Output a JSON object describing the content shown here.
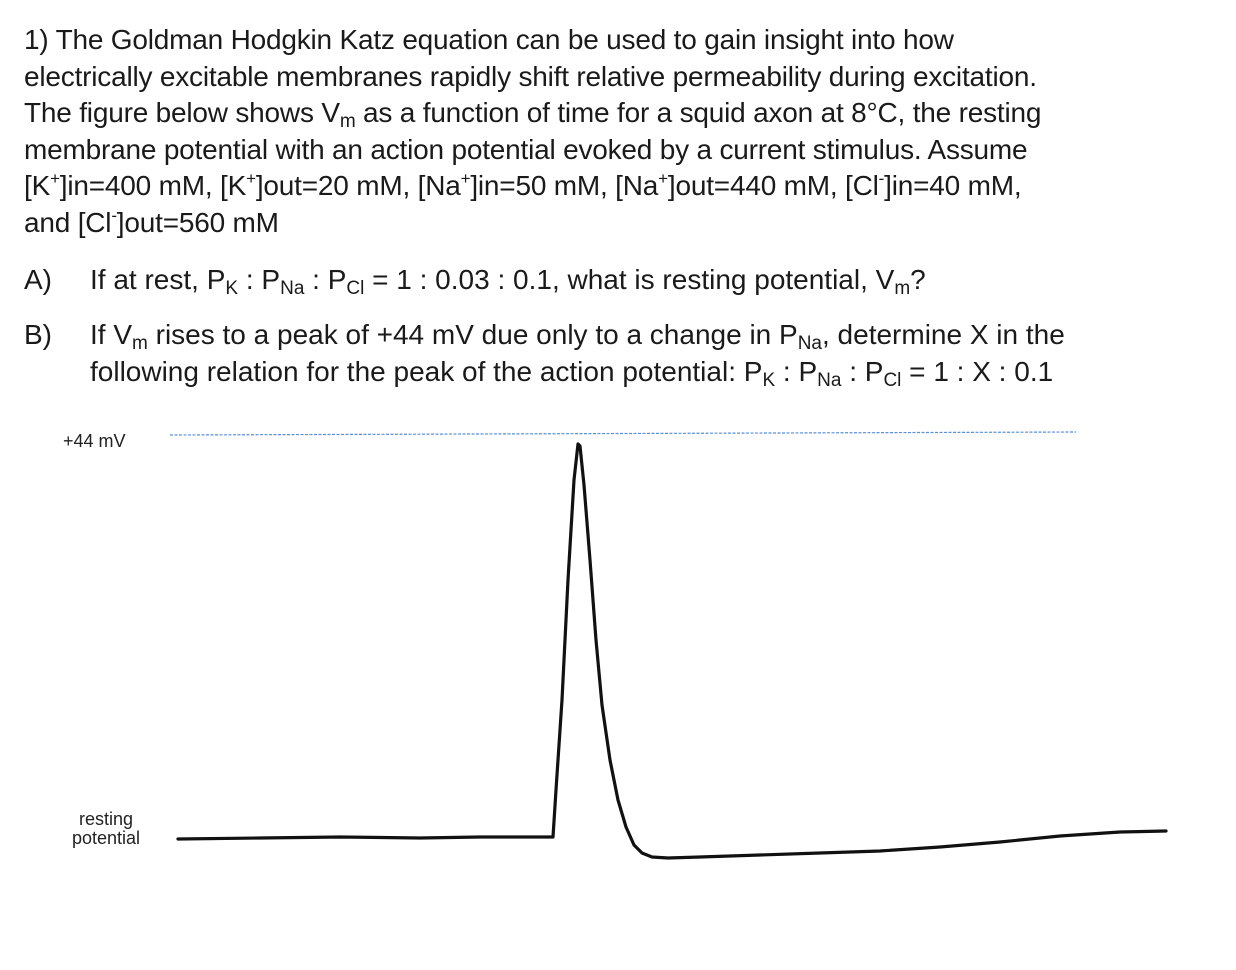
{
  "question": {
    "number": "1)",
    "intro_line1": "The Goldman Hodgkin Katz equation can be used to gain insight into how",
    "intro_line2": "electrically excitable membranes rapidly shift relative permeability during excitation.",
    "intro_line3_a": "The figure below shows V",
    "intro_line3_sub": "m",
    "intro_line3_b": " as a function of time for a squid axon at 8°C, the resting",
    "intro_line4": "membrane potential with an action potential evoked by a current stimulus. Assume",
    "conc": {
      "k_in_a": "[K",
      "k_in_sup": "+",
      "k_in_b": "]in=400 mM, [K",
      "k_out_sup": "+",
      "k_out_b": "]out=20 mM, [Na",
      "na_in_sup": "+",
      "na_in_b": "]in=50 mM, [Na",
      "na_out_sup": "+",
      "na_out_b": "]out=440 mM, [Cl",
      "cl_in_sup": "-",
      "cl_in_b": "]in=40 mM,",
      "line6_a": "and [Cl",
      "cl_out_sup": "-",
      "line6_b": "]out=560 mM"
    }
  },
  "part_a": {
    "letter": "A)",
    "t1": "If at rest, P",
    "s1": "K",
    "t2": " : P",
    "s2": "Na",
    "t3": " : P",
    "s3": "Cl",
    "t4": " = 1 : 0.03 : 0.1, what is resting potential, V",
    "s4": "m",
    "t5": "?"
  },
  "part_b": {
    "letter": "B)",
    "l1_t1": "If V",
    "l1_s1": "m",
    "l1_t2": " rises to a peak of +44 mV due only to a change in P",
    "l1_s2": "Na",
    "l1_t3": ", determine X in the",
    "l2_t1": "following relation for the peak of the action potential: P",
    "l2_s1": "K",
    "l2_t2": " : P",
    "l2_s2": "Na",
    "l2_t3": " : P",
    "l2_s3": "Cl",
    "l2_t4": " = 1 : X : 0.1"
  },
  "figure": {
    "peak_label": "+44 mV",
    "rest_label_1": "resting",
    "rest_label_2": "potential",
    "peak_line_color": "#5b8fd6",
    "trace_color": "#111111"
  }
}
